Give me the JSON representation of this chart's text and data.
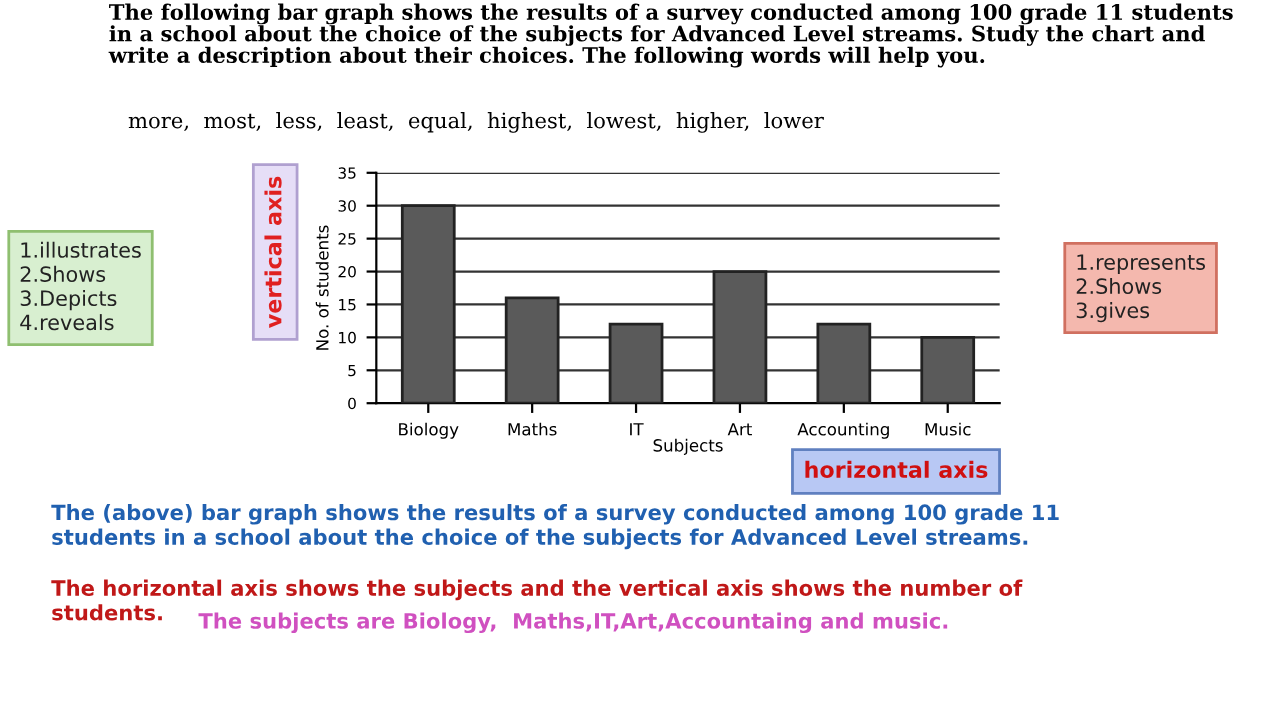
{
  "chart_data": {
    "type": "bar",
    "title": "The following bar graph shows the results of a survey conducted among 100 grade 11 students\nin a school about the choice of the subjects for Advanced Level streams. Study the chart and\nwrite a description about their choices. The following words will help you.",
    "subtitle": "more,  most,  less,  least,  equal,  highest,  lowest,  higher,  lower",
    "xlabel": "Subjects",
    "ylabel": "No. of students",
    "categories": [
      "Biology",
      "Maths",
      "IT",
      "Art",
      "Accounting",
      "Music"
    ],
    "values": [
      30,
      16,
      12,
      20,
      12,
      10
    ],
    "color": "#5a5a5a",
    "ylim": [
      0,
      35
    ],
    "yticks": [
      0,
      5,
      10,
      15,
      20,
      25,
      30,
      35
    ],
    "grid": "y",
    "annotations": [
      "1.illustrates\n2.Shows\n3.Depicts\n4.reveals",
      "vertical axis",
      "1.represents\n2.Shows\n3.gives",
      "horizontal axis",
      "The (above) bar graph shows the results of a survey conducted among 100 grade 11\nstudents in a school about the choice of the subjects for Advanced Level streams.",
      "The horizontal axis shows the subjects and the vertical axis shows the number of\nstudents.",
      "The subjects are Biology,  Maths,IT,Art,Accountaing and music."
    ]
  }
}
